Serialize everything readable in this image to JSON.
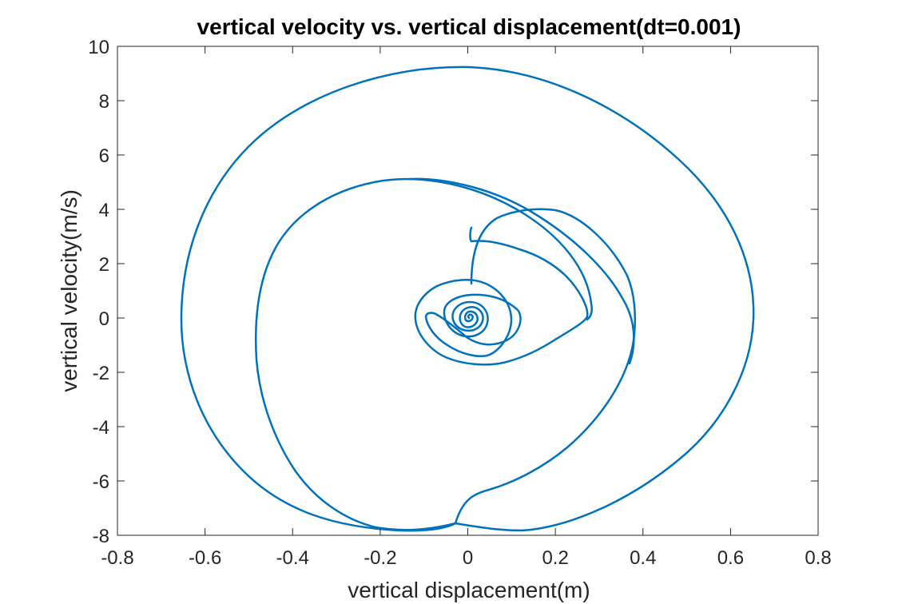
{
  "chart_data": {
    "type": "line",
    "title": "vertical velocity vs. vertical displacement(dt=0.001)",
    "xlabel": "vertical displacement(m)",
    "ylabel": "vertical velocity(m/s)",
    "xlim": [
      -0.8,
      0.8
    ],
    "ylim": [
      -8,
      10
    ],
    "xticks": [
      "-0.8",
      "-0.6",
      "-0.4",
      "-0.2",
      "0",
      "0.2",
      "0.4",
      "0.6",
      "0.8"
    ],
    "yticks": [
      "-8",
      "-6",
      "-4",
      "-2",
      "0",
      "2",
      "4",
      "6",
      "8",
      "10"
    ],
    "grid": false,
    "legend": "none",
    "series_color": "#0072BD",
    "axes_color": "#262626",
    "series": [
      {
        "x": [
          0,
          0.01,
          0.05,
          0.1,
          0.15,
          0.19,
          0.24,
          0.27,
          0.265,
          0.24,
          0.19,
          0.12,
          0.05,
          -0.02,
          -0.08,
          -0.12,
          -0.16,
          -0.2,
          -0.25,
          -0.3,
          -0.35,
          -0.4,
          -0.45,
          -0.48,
          -0.47,
          -0.44,
          -0.38,
          -0.3,
          -0.2,
          -0.1,
          0.0,
          0.08,
          0.16,
          0.24,
          0.3,
          0.345,
          0.37,
          0.38,
          0.375,
          0.36,
          0.33,
          0.28,
          0.2,
          0.1,
          0.0,
          -0.14,
          -0.25,
          -0.36,
          -0.44,
          -0.49,
          -0.5,
          -0.49,
          -0.45,
          -0.38,
          -0.28,
          -0.17,
          -0.05,
          0.1,
          0.25,
          0.4,
          0.5,
          0.56,
          0.62,
          0.65,
          0.65,
          0.62,
          0.55,
          0.45,
          0.32,
          0.2,
          0.11,
          0.0,
          -0.15,
          -0.3,
          -0.42,
          -0.52,
          -0.6,
          -0.64,
          -0.65,
          -0.64,
          -0.58,
          -0.45,
          -0.3,
          -0.1,
          0.1,
          0.2,
          0.3,
          0.45,
          0.57,
          0.63,
          0.65
        ],
        "y": [
          0,
          2.5,
          3.5,
          3.9,
          3.95,
          3.95,
          3.4,
          2.0,
          1.0,
          0.0,
          -1.2,
          -2.0,
          -2.3,
          -2.3,
          -2.2,
          -2.0,
          -1.5,
          -1.0,
          -0.5,
          0.0,
          0.3,
          0.5,
          1.0,
          2.0,
          3.0,
          3.8,
          4.5,
          4.9,
          5.05,
          4.9,
          4.5,
          4.0,
          3.4,
          2.6,
          1.8,
          1.0,
          0.3,
          0.0,
          -0.8,
          -1.6,
          -2.6,
          -3.7,
          -5.0,
          -6.2,
          -7.0,
          -7.6,
          -7.7,
          -7.4,
          -6.8,
          -6.0,
          -5.5,
          -5.0,
          -4.0,
          -2.6,
          -1.0,
          0.5,
          2.0,
          3.8,
          5.5,
          7.0,
          7.8,
          8.3,
          8.8,
          9.1,
          9.2,
          9.15,
          8.8,
          8.2,
          7.2,
          6.0,
          4.5,
          2.5,
          0.0,
          -2.5,
          -4.7,
          -6.2,
          -7.3,
          -7.7,
          -7.75,
          -7.7,
          -7.4,
          -6.9,
          -6.0,
          -4.5,
          -3.0,
          0.0,
          -7.8,
          -7.6,
          -7.0,
          -6.0,
          -4.0
        ]
      }
    ]
  }
}
